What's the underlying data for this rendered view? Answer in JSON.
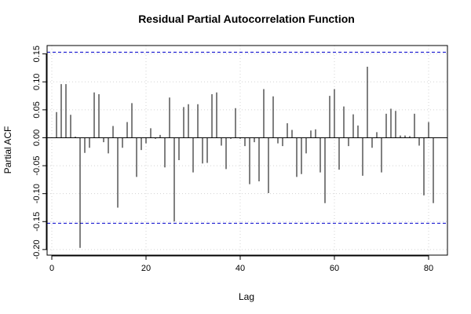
{
  "chart_data": {
    "type": "bar",
    "title": "Residual Partial Autocorrelation Function",
    "xlabel": "Lag",
    "ylabel": "Partial ACF",
    "xlim": [
      -1,
      84
    ],
    "ylim": [
      -0.21,
      0.165
    ],
    "x_ticks": [
      0,
      20,
      40,
      60,
      80
    ],
    "x_tick_labels": [
      "0",
      "20",
      "40",
      "60",
      "80"
    ],
    "y_ticks": [
      -0.2,
      -0.15,
      -0.1,
      -0.05,
      0.0,
      0.05,
      0.1,
      0.15
    ],
    "y_tick_labels": [
      "-0.20",
      "-0.15",
      "-0.10",
      "-0.05",
      "0.00",
      "0.05",
      "0.10",
      "0.15"
    ],
    "grid": true,
    "confidence_bounds": [
      0.153,
      -0.153
    ],
    "colors": {
      "bars": "#000000",
      "bounds": "#0000cc",
      "grid": "#d3d3d3"
    },
    "lags": [
      1,
      2,
      3,
      4,
      5,
      6,
      7,
      8,
      9,
      10,
      11,
      12,
      13,
      14,
      15,
      16,
      17,
      18,
      19,
      20,
      21,
      22,
      23,
      24,
      25,
      26,
      27,
      28,
      29,
      30,
      31,
      32,
      33,
      34,
      35,
      36,
      37,
      38,
      39,
      40,
      41,
      42,
      43,
      44,
      45,
      46,
      47,
      48,
      49,
      50,
      51,
      52,
      53,
      54,
      55,
      56,
      57,
      58,
      59,
      60,
      61,
      62,
      63,
      64,
      65,
      66,
      67,
      68,
      69,
      70,
      71,
      72,
      73,
      74,
      75,
      76,
      77,
      78,
      79,
      80,
      81
    ],
    "values": [
      0.046,
      0.096,
      0.096,
      0.041,
      0.002,
      -0.197,
      -0.027,
      -0.018,
      0.081,
      0.078,
      -0.008,
      -0.028,
      0.021,
      -0.125,
      -0.018,
      0.028,
      0.062,
      -0.07,
      -0.022,
      -0.01,
      0.017,
      -0.002,
      0.005,
      -0.053,
      0.072,
      -0.15,
      -0.04,
      0.055,
      0.06,
      -0.062,
      0.06,
      -0.046,
      -0.045,
      0.078,
      0.081,
      -0.014,
      -0.056,
      -0.002,
      0.053,
      -0.002,
      -0.015,
      -0.083,
      -0.008,
      -0.078,
      0.087,
      -0.099,
      0.074,
      -0.01,
      -0.015,
      0.026,
      0.014,
      -0.07,
      -0.065,
      -0.028,
      0.013,
      0.015,
      -0.062,
      -0.117,
      0.075,
      0.087,
      -0.057,
      0.056,
      -0.015,
      0.042,
      0.022,
      -0.068,
      0.127,
      -0.018,
      0.01,
      -0.062,
      0.043,
      0.052,
      0.048,
      0.004,
      0.004,
      0.003,
      0.043,
      -0.014,
      -0.103,
      0.028,
      -0.117
    ]
  }
}
